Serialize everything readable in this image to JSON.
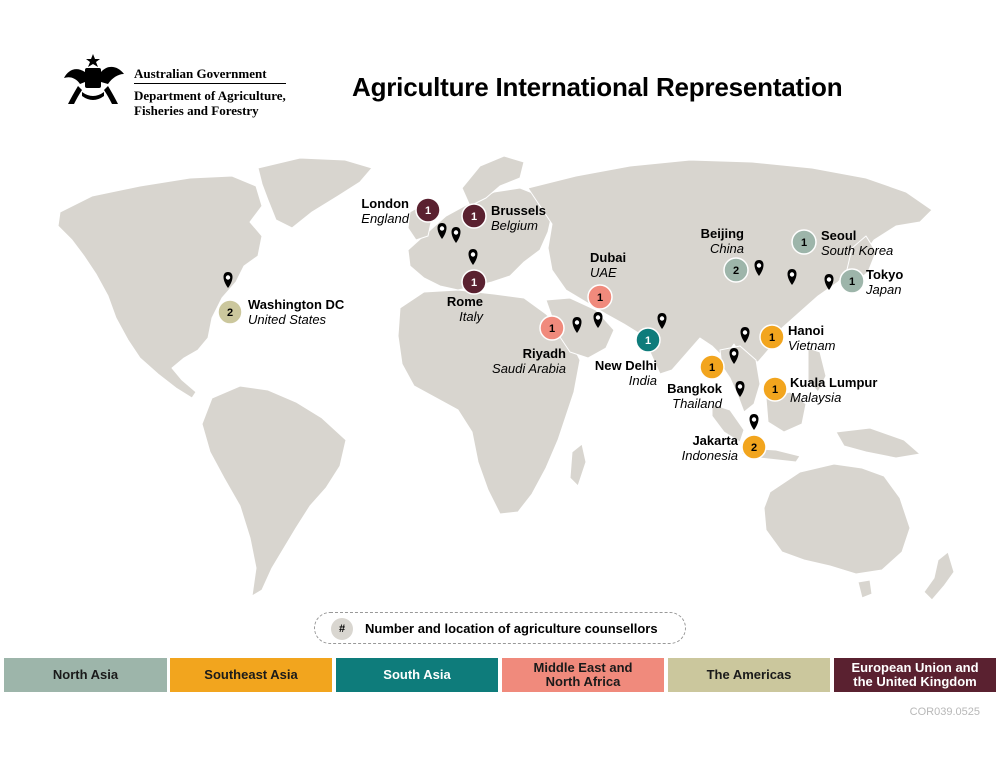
{
  "header": {
    "government": "Australian Government",
    "department": "Department of Agriculture, Fisheries and Forestry",
    "title": "Agriculture International Representation"
  },
  "locations": [
    {
      "city": "Washington DC",
      "country": "United States",
      "count": "2",
      "region": "the_americas"
    },
    {
      "city": "London",
      "country": "England",
      "count": "1",
      "region": "eu_uk"
    },
    {
      "city": "Brussels",
      "country": "Belgium",
      "count": "1",
      "region": "eu_uk"
    },
    {
      "city": "Rome",
      "country": "Italy",
      "count": "1",
      "region": "eu_uk"
    },
    {
      "city": "Dubai",
      "country": "UAE",
      "count": "1",
      "region": "mena"
    },
    {
      "city": "Riyadh",
      "country": "Saudi Arabia",
      "count": "1",
      "region": "mena"
    },
    {
      "city": "New Delhi",
      "country": "India",
      "count": "1",
      "region": "south_asia"
    },
    {
      "city": "Beijing",
      "country": "China",
      "count": "2",
      "region": "north_asia"
    },
    {
      "city": "Seoul",
      "country": "South Korea",
      "count": "1",
      "region": "north_asia"
    },
    {
      "city": "Tokyo",
      "country": "Japan",
      "count": "1",
      "region": "north_asia"
    },
    {
      "city": "Hanoi",
      "country": "Vietnam",
      "count": "1",
      "region": "southeast_asia"
    },
    {
      "city": "Bangkok",
      "country": "Thailand",
      "count": "1",
      "region": "southeast_asia"
    },
    {
      "city": "Kuala Lumpur",
      "country": "Malaysia",
      "count": "1",
      "region": "southeast_asia"
    },
    {
      "city": "Jakarta",
      "country": "Indonesia",
      "count": "2",
      "region": "southeast_asia"
    }
  ],
  "legend": {
    "symbol": "#",
    "text": "Number and location of agriculture counsellors",
    "regions": [
      {
        "key": "north_asia",
        "label": "North Asia",
        "color": "#9db5aa"
      },
      {
        "key": "southeast_asia",
        "label": "Southeast Asia",
        "color": "#f2a51e"
      },
      {
        "key": "south_asia",
        "label": "South Asia",
        "color": "#0e7c7b"
      },
      {
        "key": "mena",
        "label": "Middle East and North Africa",
        "color": "#f08a7c"
      },
      {
        "key": "the_americas",
        "label": "The Americas",
        "color": "#cbc79d"
      },
      {
        "key": "eu_uk",
        "label": "European Union and the United Kingdom",
        "color": "#5a2130"
      }
    ]
  },
  "footer": {
    "reference": "COR039.0525"
  }
}
